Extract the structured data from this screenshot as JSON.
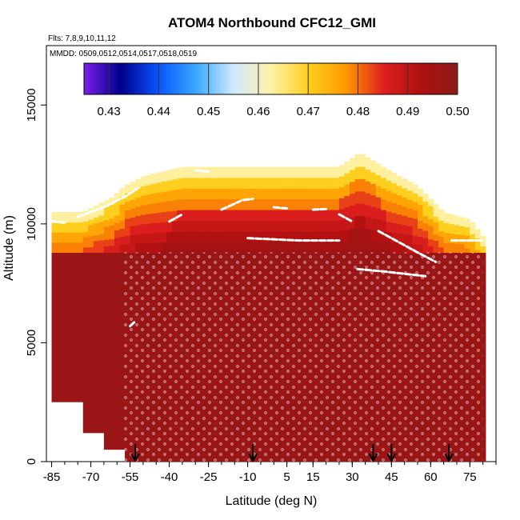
{
  "chart_data": {
    "type": "heatmap",
    "title": "ATOM4 Northbound CFC12_GMI",
    "subtitle_flights": "Flts: 7,8,9,10,11,12",
    "subtitle_dates": "MMDD: 0509,0512,0514,0517,0518,0519",
    "xlabel": "Latitude (deg N)",
    "ylabel": "Altitude (m)",
    "xlim": [
      -87,
      85
    ],
    "ylim": [
      0,
      17500
    ],
    "x_ticks": [
      -85,
      -70,
      -55,
      -40,
      -25,
      -10,
      5,
      15,
      30,
      45,
      60,
      75
    ],
    "x_tick_labels": [
      "-85",
      "-70",
      "-55",
      "-40",
      "-25",
      "-10",
      "5",
      "15",
      "30",
      "45",
      "60",
      "75"
    ],
    "y_ticks": [
      0,
      5000,
      10000,
      15000
    ],
    "y_tick_labels": [
      "0",
      "5000",
      "10000",
      "15000"
    ],
    "colorbar": {
      "min": 0.425,
      "max": 0.5,
      "ticks": [
        0.43,
        0.44,
        0.45,
        0.46,
        0.47,
        0.48,
        0.49,
        0.5
      ],
      "tick_labels": [
        "0.43",
        "0.44",
        "0.45",
        "0.46",
        "0.47",
        "0.48",
        "0.49",
        "0.50"
      ],
      "stops": [
        "#7a1fe6",
        "#00008b",
        "#0a55ff",
        "#3aa9ff",
        "#cfe9ff",
        "#fff2a8",
        "#ffcf1f",
        "#ff9a00",
        "#e02020",
        "#b01010",
        "#8b1a1a"
      ]
    },
    "arrows_latitude": [
      -53,
      -8,
      38,
      45,
      67
    ],
    "background_value": 0.497,
    "upper_layer": {
      "top_altitude": [
        [
          -85,
          10500
        ],
        [
          -73,
          10500
        ],
        [
          -62,
          11100
        ],
        [
          -57,
          11600
        ],
        [
          -50,
          12000
        ],
        [
          -43,
          12200
        ],
        [
          -35,
          12400
        ],
        [
          -10,
          12400
        ],
        [
          25,
          12400
        ],
        [
          33,
          13000
        ],
        [
          45,
          12200
        ],
        [
          55,
          11600
        ],
        [
          65,
          10500
        ],
        [
          75,
          10200
        ],
        [
          80,
          9500
        ]
      ],
      "cross_section": [
        {
          "z": 12000,
          "v": 0.463
        },
        {
          "z": 11600,
          "v": 0.47
        },
        {
          "z": 11200,
          "v": 0.476
        },
        {
          "z": 10800,
          "v": 0.479
        },
        {
          "z": 10400,
          "v": 0.483
        },
        {
          "z": 10000,
          "v": 0.486
        },
        {
          "z": 9600,
          "v": 0.489
        },
        {
          "z": 9200,
          "v": 0.492
        },
        {
          "z": 8600,
          "v": 0.495
        }
      ]
    },
    "flight_path_segments": [
      [
        [
          -85,
          10100
        ],
        [
          -80,
          10050
        ]
      ],
      [
        [
          -75,
          10300
        ],
        [
          -65,
          10700
        ],
        [
          -56,
          11200
        ],
        [
          -52,
          11500
        ]
      ],
      [
        [
          -30,
          12250
        ],
        [
          -25,
          12200
        ]
      ],
      [
        [
          -40,
          10100
        ],
        [
          -35,
          10400
        ]
      ],
      [
        [
          -20,
          10600
        ],
        [
          -12,
          11000
        ],
        [
          -8,
          11050
        ]
      ],
      [
        [
          0,
          10700
        ],
        [
          5,
          10650
        ]
      ],
      [
        [
          15,
          10600
        ],
        [
          20,
          10620
        ]
      ],
      [
        [
          25,
          10400
        ],
        [
          30,
          10100
        ]
      ],
      [
        [
          -10,
          9400
        ],
        [
          10,
          9300
        ],
        [
          25,
          9300
        ]
      ],
      [
        [
          -55,
          5700
        ],
        [
          -53,
          5900
        ]
      ],
      [
        [
          40,
          9700
        ],
        [
          55,
          8800
        ],
        [
          62,
          8400
        ]
      ],
      [
        [
          32,
          8100
        ],
        [
          42,
          8000
        ],
        [
          58,
          7800
        ]
      ],
      [
        [
          66,
          10500
        ],
        [
          72,
          10600
        ]
      ],
      [
        [
          68,
          9300
        ],
        [
          80,
          9300
        ]
      ]
    ]
  }
}
